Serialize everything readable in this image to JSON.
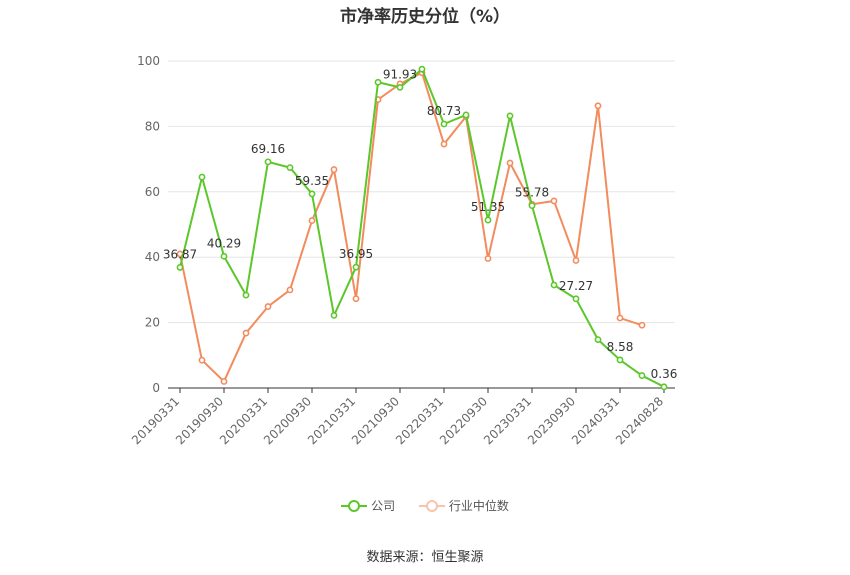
{
  "chart_data": {
    "type": "line",
    "title": "市净率历史分位（%）",
    "source": "数据来源：恒生聚源",
    "ylim": [
      0,
      100
    ],
    "y_ticks": [
      0,
      20,
      40,
      60,
      80,
      100
    ],
    "grid": true,
    "legend_position": "bottom-center",
    "x": [
      "20190331",
      "20190630",
      "20190930",
      "20191231",
      "20200331",
      "20200630",
      "20200930",
      "20201231",
      "20210331",
      "20210630",
      "20210930",
      "20211231",
      "20220331",
      "20220630",
      "20220930",
      "20221231",
      "20230331",
      "20230630",
      "20230930",
      "20231231",
      "20240331",
      "20240630",
      "20240828"
    ],
    "x_tick_labels": [
      "20190331",
      "20190930",
      "20200331",
      "20200930",
      "20210331",
      "20210930",
      "20220331",
      "20220930",
      "20230331",
      "20230930",
      "20240331",
      "20240828"
    ],
    "series": [
      {
        "name": "公司",
        "color": "#5cc72a",
        "values": [
          36.87,
          64.5,
          40.29,
          28.4,
          69.16,
          67.4,
          59.35,
          22.2,
          36.95,
          93.5,
          91.93,
          97.5,
          80.73,
          83.5,
          51.35,
          83.2,
          55.78,
          31.5,
          27.27,
          14.8,
          8.58,
          3.8,
          0.36
        ],
        "labels": {
          "0": "36.87",
          "2": "40.29",
          "4": "69.16",
          "6": "59.35",
          "8": "36.95",
          "10": "91.93",
          "12": "80.73",
          "14": "51.35",
          "16": "55.78",
          "18": "27.27",
          "20": "8.58",
          "22": "0.36"
        }
      },
      {
        "name": "行业中位数",
        "color": "#f28c5e",
        "values": [
          41.0,
          8.5,
          2.0,
          16.8,
          24.9,
          30.0,
          51.2,
          66.8,
          27.3,
          88.2,
          93.0,
          96.4,
          74.6,
          83.0,
          39.6,
          68.8,
          56.2,
          57.2,
          39.0,
          86.3,
          21.4,
          19.2,
          null
        ]
      }
    ]
  }
}
